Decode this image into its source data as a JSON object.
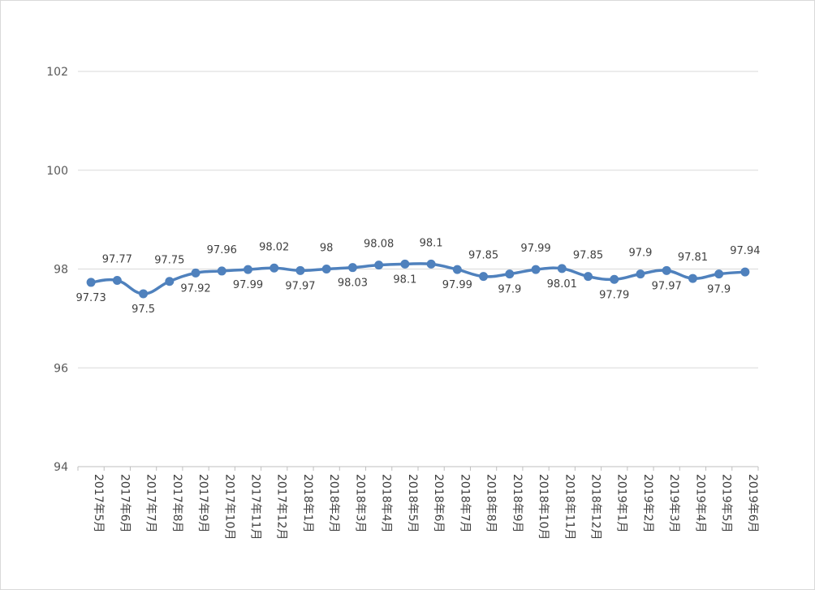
{
  "chart_data": {
    "type": "line",
    "title": "",
    "xlabel": "",
    "ylabel": "",
    "ylim": [
      94,
      102
    ],
    "yticks": [
      "94",
      "96",
      "98",
      "100",
      "102"
    ],
    "grid": true,
    "legend": "none",
    "categories": [
      "2017年5月",
      "2017年6月",
      "2017年7月",
      "2017年8月",
      "2017年9月",
      "2017年10月",
      "2017年11月",
      "2017年12月",
      "2018年1月",
      "2018年2月",
      "2018年3月",
      "2018年4月",
      "2018年5月",
      "2018年6月",
      "2018年7月",
      "2018年8月",
      "2018年9月",
      "2018年10月",
      "2018年11月",
      "2018年12月",
      "2019年1月",
      "2019年2月",
      "2019年3月",
      "2019年4月",
      "2019年5月",
      "2019年6月"
    ],
    "series": [
      {
        "values": [
          97.73,
          97.77,
          97.5,
          97.75,
          97.92,
          97.96,
          97.99,
          98.02,
          97.97,
          98,
          98.03,
          98.08,
          98.1,
          98.1,
          97.99,
          97.85,
          97.9,
          97.99,
          98.01,
          97.85,
          97.79,
          97.9,
          97.97,
          97.81,
          97.9,
          97.94
        ],
        "labels": [
          "97.73",
          "97.77",
          "97.5",
          "97.75",
          "97.92",
          "97.96",
          "97.99",
          "98.02",
          "97.97",
          "98",
          "98.03",
          "98.08",
          "98.1",
          "98.1",
          "97.99",
          "97.85",
          "97.9",
          "97.99",
          "98.01",
          "97.85",
          "97.79",
          "97.9",
          "97.97",
          "97.81",
          "97.9",
          "97.94"
        ],
        "color": "#4f81bd"
      }
    ]
  }
}
